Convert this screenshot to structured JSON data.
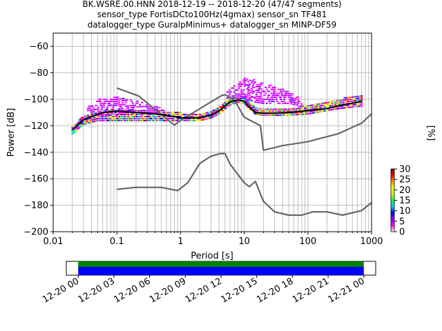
{
  "chart_data": {
    "type": "heatmap",
    "title_lines": [
      "BK.WSRE.00.HNN   2018-12-19 -- 2018-12-20  (47/47 segments)",
      "sensor_type FortisDCto100Hz(4gmax) sensor_sn TF481",
      "datalogger_type GuralpMinimus+ datalogger_sn MINP-DF59"
    ],
    "xlabel": "Period [s]",
    "ylabel": "Power [dB]",
    "x_scale": "log",
    "xlim": [
      0.01,
      1000
    ],
    "ylim": [
      -200,
      -50
    ],
    "x_ticks": [
      {
        "v": 0.01,
        "label": "0.01"
      },
      {
        "v": 0.1,
        "label": "0.1"
      },
      {
        "v": 1,
        "label": "1"
      },
      {
        "v": 10,
        "label": "10"
      },
      {
        "v": 100,
        "label": "100"
      },
      {
        "v": 1000,
        "label": "1000"
      }
    ],
    "y_ticks": [
      -60,
      -80,
      -100,
      -120,
      -140,
      -160,
      -180,
      -200
    ],
    "grid": true,
    "colorbar": {
      "label": "[%]",
      "range": [
        0,
        30
      ],
      "ticks": [
        0,
        5,
        10,
        15,
        20,
        25,
        30
      ],
      "colors": [
        "#ffffff",
        "#ff00ff",
        "#9900ff",
        "#0000ff",
        "#00c8ff",
        "#00ff64",
        "#c8ff00",
        "#ffff00",
        "#ff9600",
        "#ff0000",
        "#800000"
      ]
    },
    "series": [
      {
        "style": "gray",
        "x": [
          0.1,
          0.22,
          0.8,
          1,
          3,
          4.5,
          5,
          7,
          10,
          18,
          20,
          40,
          100,
          300,
          700,
          1000
        ],
        "y": [
          -91.5,
          -97.5,
          -119.5,
          -116,
          -102,
          -97,
          -96.5,
          -100.5,
          -113.5,
          -120,
          -138.5,
          -135,
          -132,
          -126,
          -118,
          -111
        ]
      },
      {
        "style": "gray",
        "x": [
          0.1,
          0.2,
          0.5,
          0.9,
          1.3,
          2,
          3,
          4.2,
          5,
          6,
          10,
          12,
          15,
          20,
          30,
          50,
          80,
          120,
          200,
          350,
          700,
          1000
        ],
        "y": [
          -168,
          -166.5,
          -166.5,
          -169,
          -163,
          -148.5,
          -143,
          -141,
          -141,
          -149,
          -163,
          -166,
          -162,
          -177,
          -185,
          -187.5,
          -187.5,
          -185,
          -185,
          -187.5,
          -184,
          -178
        ]
      },
      {
        "style": "black",
        "x": [
          0.02,
          0.025,
          0.03,
          0.04,
          0.06,
          0.1,
          0.2,
          0.4,
          0.8,
          1,
          2,
          3,
          4,
          5,
          6,
          8,
          10,
          12,
          15,
          20,
          30,
          50,
          100,
          200,
          300,
          500,
          700
        ],
        "y": [
          -123,
          -119,
          -115.5,
          -113,
          -110,
          -109,
          -110,
          -111,
          -113,
          -114,
          -114,
          -112,
          -109,
          -105,
          -102,
          -100.5,
          -101.5,
          -106,
          -110,
          -110.5,
          -110.5,
          -110,
          -108.5,
          -107,
          -105,
          -103,
          -101.5
        ]
      }
    ],
    "density_bands": [
      {
        "x": [
          0.02,
          0.025,
          0.03,
          0.05,
          0.1,
          0.2,
          0.4,
          1,
          2,
          3,
          4,
          5,
          6,
          8,
          10,
          15,
          20,
          50,
          100,
          300,
          700
        ],
        "lo": [
          -127,
          -123,
          -120,
          -117,
          -117,
          -117,
          -117,
          -117,
          -117,
          -115,
          -112,
          -108,
          -105,
          -103,
          -104,
          -112,
          -113,
          -113,
          -112,
          -108,
          -106
        ],
        "hi": [
          -121,
          -117,
          -113,
          -110,
          -108,
          -108,
          -109,
          -111,
          -112,
          -110,
          -107,
          -102,
          -100,
          -99,
          -99,
          -106,
          -108,
          -108,
          -105,
          -101,
          -97
        ]
      },
      {
        "x": [
          0.035,
          0.05,
          0.08,
          0.1,
          0.15,
          0.25,
          0.4,
          0.6
        ],
        "lo": [
          -114,
          -113,
          -113,
          -113,
          -112,
          -111,
          -111,
          -113
        ],
        "hi": [
          -102,
          -101,
          -100,
          -99,
          -100,
          -103,
          -106,
          -109
        ]
      },
      {
        "x": [
          5,
          6,
          8,
          10,
          15,
          20,
          30,
          50,
          80
        ],
        "lo": [
          -100,
          -100,
          -100,
          -100,
          -103,
          -104,
          -104,
          -104,
          -106
        ],
        "hi": [
          -97,
          -93,
          -88,
          -85,
          -86,
          -89,
          -91,
          -95,
          -101
        ]
      }
    ],
    "time_axis": {
      "ticks": [
        "12-20 00",
        "12-20 03",
        "12-20 06",
        "12-20 09",
        "12-20 12",
        "12-20 15",
        "12-20 18",
        "12-20 21",
        "12-21 00"
      ],
      "range_hours": [
        -1,
        25
      ],
      "segments": [
        0,
        24
      ],
      "colors": [
        "#008000",
        "#0000ff"
      ]
    }
  }
}
